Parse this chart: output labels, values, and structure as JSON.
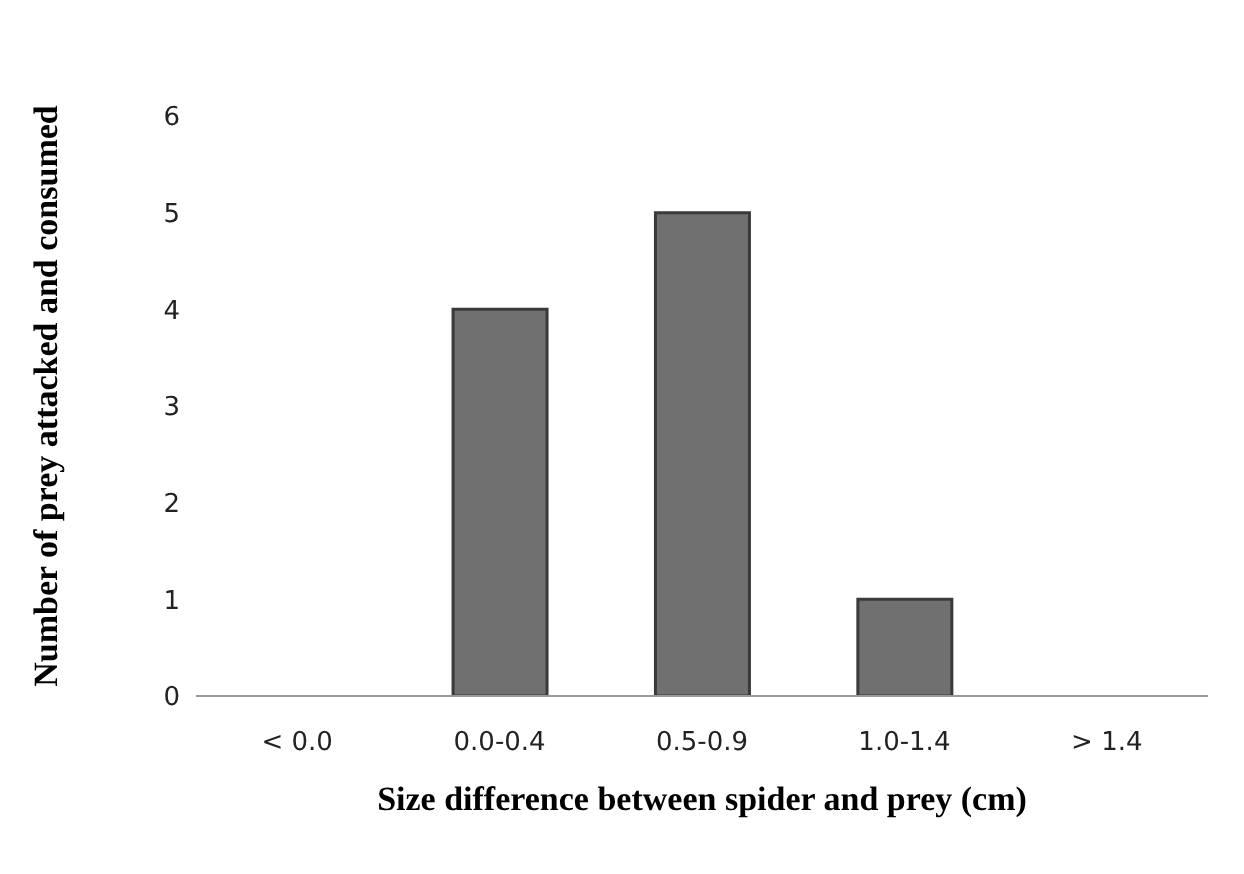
{
  "chart_data": {
    "type": "bar",
    "xlabel": "Size difference between spider and prey (cm)",
    "ylabel": "Number of prey attacked and consumed",
    "categories": [
      "< 0.0",
      "0.0-0.4",
      "0.5-0.9",
      "1.0-1.4",
      "> 1.4"
    ],
    "values": [
      0,
      4,
      5,
      1,
      0
    ],
    "color": "#707070",
    "ylim": [
      0,
      6
    ],
    "yticks": [
      0,
      1,
      2,
      3,
      4,
      5,
      6
    ],
    "grid": false,
    "legend": false
  }
}
